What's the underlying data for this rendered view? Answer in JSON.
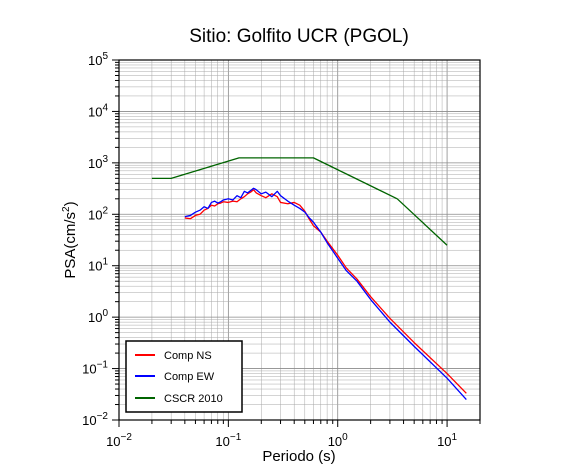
{
  "chart_data": {
    "type": "line",
    "title": "Sitio: Golfito UCR (PGOL)",
    "xlabel": "Periodo (s)",
    "ylabel_main": "PSA(cm/s",
    "ylabel_sup": "2",
    "ylabel_close": ")",
    "x_scale": "log",
    "y_scale": "log",
    "xlim": [
      0.01,
      20
    ],
    "ylim": [
      0.01,
      100000
    ],
    "grid": true,
    "legend_position": "bottom-left",
    "x_ticks": [
      {
        "value": 0.01,
        "base": "10",
        "exp": "−2"
      },
      {
        "value": 0.1,
        "base": "10",
        "exp": "−1"
      },
      {
        "value": 1,
        "base": "10",
        "exp": "0"
      },
      {
        "value": 10,
        "base": "10",
        "exp": "1"
      }
    ],
    "y_ticks": [
      {
        "value": 0.01,
        "base": "10",
        "exp": "−2"
      },
      {
        "value": 0.1,
        "base": "10",
        "exp": "−1"
      },
      {
        "value": 1,
        "base": "10",
        "exp": "0"
      },
      {
        "value": 10,
        "base": "10",
        "exp": "1"
      },
      {
        "value": 100,
        "base": "10",
        "exp": "2"
      },
      {
        "value": 1000,
        "base": "10",
        "exp": "3"
      },
      {
        "value": 10000,
        "base": "10",
        "exp": "4"
      },
      {
        "value": 100000,
        "base": "10",
        "exp": "5"
      }
    ],
    "series": [
      {
        "name": "Comp NS",
        "color": "#ff0000",
        "x": [
          0.04,
          0.045,
          0.05,
          0.055,
          0.06,
          0.065,
          0.07,
          0.075,
          0.08,
          0.085,
          0.09,
          0.1,
          0.11,
          0.12,
          0.13,
          0.14,
          0.15,
          0.16,
          0.17,
          0.18,
          0.2,
          0.22,
          0.25,
          0.28,
          0.3,
          0.35,
          0.4,
          0.45,
          0.5,
          0.55,
          0.6,
          0.7,
          0.8,
          1.0,
          1.2,
          1.5,
          2.0,
          3.0,
          5.0,
          10.0,
          15.0
        ],
        "y": [
          85,
          82,
          95,
          100,
          120,
          130,
          150,
          145,
          160,
          165,
          175,
          170,
          180,
          175,
          200,
          220,
          250,
          270,
          300,
          260,
          230,
          210,
          250,
          220,
          170,
          160,
          170,
          150,
          115,
          80,
          60,
          45,
          30,
          16,
          9,
          5.5,
          2.5,
          0.95,
          0.32,
          0.08,
          0.033
        ]
      },
      {
        "name": "Comp EW",
        "color": "#0000ff",
        "x": [
          0.04,
          0.045,
          0.05,
          0.055,
          0.06,
          0.065,
          0.07,
          0.075,
          0.08,
          0.085,
          0.09,
          0.1,
          0.11,
          0.12,
          0.13,
          0.14,
          0.15,
          0.16,
          0.17,
          0.18,
          0.2,
          0.22,
          0.25,
          0.28,
          0.3,
          0.35,
          0.4,
          0.45,
          0.5,
          0.55,
          0.6,
          0.7,
          0.8,
          1.0,
          1.2,
          1.5,
          2.0,
          3.0,
          5.0,
          10.0,
          15.0
        ],
        "y": [
          90,
          95,
          110,
          120,
          140,
          130,
          170,
          180,
          165,
          175,
          190,
          200,
          190,
          230,
          210,
          280,
          260,
          290,
          320,
          300,
          250,
          270,
          220,
          280,
          230,
          180,
          150,
          130,
          110,
          85,
          70,
          45,
          28,
          14,
          8,
          5,
          2.2,
          0.8,
          0.27,
          0.065,
          0.025
        ]
      },
      {
        "name": "CSCR 2010",
        "color": "#006400",
        "x": [
          0.02,
          0.03,
          0.125,
          0.6,
          3.5,
          10.0
        ],
        "y": [
          500,
          500,
          1250,
          1250,
          200,
          25
        ]
      }
    ]
  }
}
